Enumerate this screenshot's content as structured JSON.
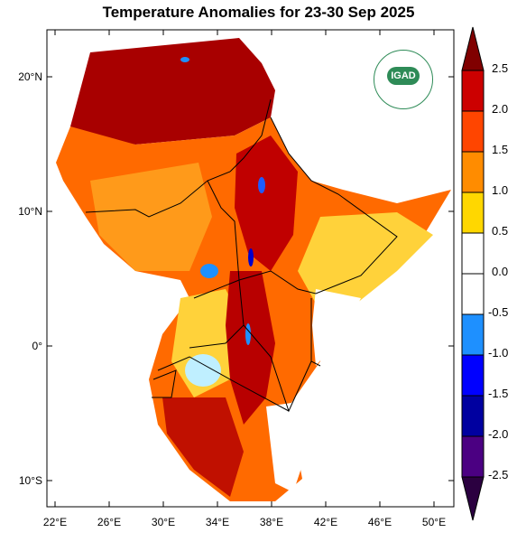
{
  "title": "Temperature Anomalies for 23-30 Sep 2025",
  "map": {
    "lat_labels": [
      "20°N",
      "10°N",
      "0°",
      "10°S"
    ],
    "lon_labels": [
      "22°E",
      "26°E",
      "30°E",
      "34°E",
      "38°E",
      "42°E",
      "46°E",
      "50°E"
    ],
    "logo_text": "IGAD"
  },
  "colorbar": {
    "labels": [
      "2.5",
      "2.0",
      "1.5",
      "1.0",
      "0.5",
      "0.0",
      "-0.5",
      "-1.0",
      "-1.5",
      "-2.0",
      "-2.5"
    ],
    "colors": [
      "#800000",
      "#cc0000",
      "#ff4500",
      "#ff8c00",
      "#ffd700",
      "#ffffff",
      "#1e90ff",
      "#0000ff",
      "#0000a0",
      "#4b0082",
      "#2b0040"
    ]
  }
}
